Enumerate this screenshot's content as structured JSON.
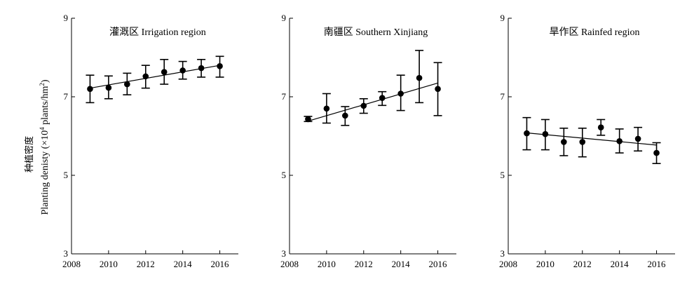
{
  "y_axis": {
    "label_cn": "种植密度",
    "label_main": "Planting denisty (×10",
    "label_sup": "4",
    "label_units": " plants/hm",
    "label_sup2": "2",
    "label_end": ")"
  },
  "chart_data": [
    {
      "type": "scatter",
      "title": "灌溉区 Irrigation region",
      "x": [
        2009,
        2010,
        2011,
        2012,
        2013,
        2014,
        2015,
        2016
      ],
      "y": [
        7.2,
        7.23,
        7.32,
        7.52,
        7.63,
        7.67,
        7.73,
        7.78
      ],
      "err_low": [
        6.85,
        6.95,
        7.05,
        7.22,
        7.32,
        7.45,
        7.5,
        7.5
      ],
      "err_high": [
        7.55,
        7.53,
        7.6,
        7.8,
        7.95,
        7.9,
        7.95,
        8.03
      ],
      "trend": [
        [
          2009,
          7.22
        ],
        [
          2016,
          7.8
        ]
      ],
      "xlim": [
        2008,
        2017
      ],
      "ylim": [
        3,
        9
      ],
      "xticks": [
        2008,
        2010,
        2012,
        2014,
        2016
      ],
      "yticks": [
        3,
        5,
        7,
        9
      ]
    },
    {
      "type": "scatter",
      "title": "南疆区 Southern Xinjiang",
      "x": [
        2009,
        2010,
        2011,
        2012,
        2013,
        2014,
        2015,
        2016
      ],
      "y": [
        6.43,
        6.7,
        6.52,
        6.77,
        6.97,
        7.08,
        7.48,
        7.2
      ],
      "err_low": [
        6.37,
        6.33,
        6.27,
        6.58,
        6.78,
        6.65,
        6.85,
        6.52
      ],
      "err_high": [
        6.5,
        7.08,
        6.75,
        6.95,
        7.13,
        7.55,
        8.18,
        7.87
      ],
      "trend": [
        [
          2009,
          6.38
        ],
        [
          2016,
          7.35
        ]
      ],
      "xlim": [
        2008,
        2017
      ],
      "ylim": [
        3,
        9
      ],
      "xticks": [
        2008,
        2010,
        2012,
        2014,
        2016
      ],
      "yticks": [
        3,
        5,
        7,
        9
      ]
    },
    {
      "type": "scatter",
      "title": "旱作区 Rainfed region",
      "x": [
        2009,
        2010,
        2011,
        2012,
        2013,
        2014,
        2015,
        2016
      ],
      "y": [
        6.07,
        6.05,
        5.85,
        5.85,
        6.22,
        5.87,
        5.93,
        5.57
      ],
      "err_low": [
        5.65,
        5.65,
        5.5,
        5.47,
        6.02,
        5.57,
        5.62,
        5.3
      ],
      "err_high": [
        6.47,
        6.42,
        6.2,
        6.2,
        6.42,
        6.18,
        6.22,
        5.83
      ],
      "trend": [
        [
          2009,
          6.08
        ],
        [
          2016,
          5.77
        ]
      ],
      "xlim": [
        2008,
        2017
      ],
      "ylim": [
        3,
        9
      ],
      "xticks": [
        2008,
        2010,
        2012,
        2014,
        2016
      ],
      "yticks": [
        3,
        5,
        7,
        9
      ]
    }
  ]
}
